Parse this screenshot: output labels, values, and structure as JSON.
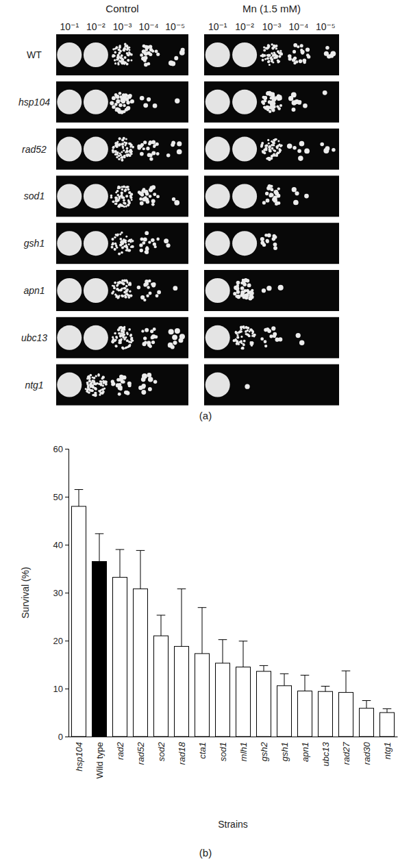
{
  "figure": {
    "panel_labels": [
      "(a)",
      "(b)"
    ]
  },
  "panel_a": {
    "conditions": [
      "Control",
      "Mn (1.5 mM)"
    ],
    "dilutions": [
      "10⁻¹",
      "10⁻²",
      "10⁻³",
      "10⁻⁴",
      "10⁻⁵"
    ],
    "strains": [
      "WT",
      "hsp104",
      "rad52",
      "sod1",
      "gsh1",
      "apn1",
      "ubc13",
      "ntg1"
    ],
    "colonies": [
      [
        [
          200,
          200,
          60,
          20,
          5
        ],
        [
          200,
          200,
          60,
          20,
          5
        ]
      ],
      [
        [
          200,
          200,
          40,
          4,
          1
        ],
        [
          200,
          200,
          40,
          8,
          1
        ]
      ],
      [
        [
          200,
          200,
          60,
          20,
          5
        ],
        [
          200,
          200,
          60,
          8,
          4
        ]
      ],
      [
        [
          200,
          200,
          60,
          25,
          2
        ],
        [
          200,
          200,
          25,
          4,
          0
        ]
      ],
      [
        [
          200,
          200,
          50,
          15,
          2
        ],
        [
          200,
          200,
          12,
          0,
          0
        ]
      ],
      [
        [
          200,
          200,
          60,
          15,
          1
        ],
        [
          200,
          35,
          4,
          0,
          0
        ]
      ],
      [
        [
          200,
          200,
          60,
          15,
          8
        ],
        [
          200,
          60,
          12,
          2,
          0
        ]
      ],
      [
        [
          200,
          80,
          25,
          10,
          0
        ],
        [
          200,
          1,
          0,
          0,
          0
        ]
      ]
    ]
  },
  "chart_data": {
    "type": "bar",
    "x_label": "Strains",
    "y_label": "Survival (%)",
    "categories": [
      "hsp104",
      "Wild type",
      "rad2",
      "rad52",
      "sod2",
      "rad18",
      "cta1",
      "sod1",
      "mlh1",
      "gsh2",
      "gsh1",
      "apn1",
      "ubc13",
      "rad27",
      "rad30",
      "ntg1"
    ],
    "values": [
      48,
      36.5,
      33.2,
      30.8,
      21,
      18.8,
      17.3,
      15.3,
      14.5,
      13.6,
      10.6,
      9.5,
      9.4,
      9.2,
      5.9,
      5.0
    ],
    "errors": [
      3.5,
      5.8,
      5.8,
      8,
      4.3,
      12,
      9.6,
      4.9,
      5.4,
      1.2,
      2.5,
      3.3,
      1.1,
      4.5,
      1.6,
      0.8
    ],
    "colors": [
      "#ffffff",
      "#000000",
      "#ffffff",
      "#ffffff",
      "#ffffff",
      "#ffffff",
      "#ffffff",
      "#ffffff",
      "#ffffff",
      "#ffffff",
      "#ffffff",
      "#ffffff",
      "#ffffff",
      "#ffffff",
      "#ffffff",
      "#ffffff"
    ],
    "ylim": [
      0,
      60
    ],
    "yticks": [
      0,
      10,
      20,
      30,
      40,
      50,
      60
    ],
    "grid": false
  }
}
